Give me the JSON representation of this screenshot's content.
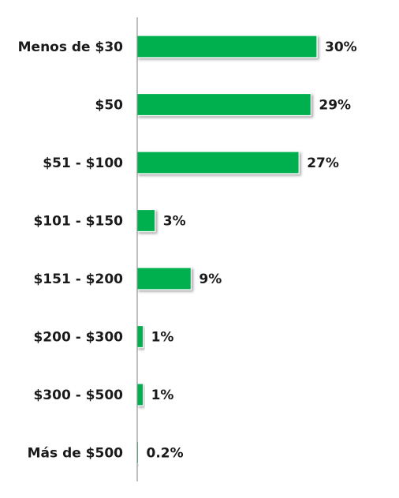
{
  "chart_data": {
    "type": "bar",
    "orientation": "horizontal",
    "categories": [
      "Menos de $30",
      "$50",
      "$51 - $100",
      "$101 - $150",
      "$151 - $200",
      "$200 - $300",
      "$300 - $500",
      "Más de $500"
    ],
    "values": [
      30,
      29,
      27,
      3,
      9,
      1,
      1,
      0.2
    ],
    "value_labels": [
      "30%",
      "29%",
      "27%",
      "3%",
      "9%",
      "1%",
      "1%",
      "0.2%"
    ],
    "unit": "%",
    "title": "",
    "xlabel": "",
    "ylabel": "",
    "xlim": [
      0,
      30
    ],
    "grid": false,
    "legend": "none",
    "colors": {
      "bar": "#00b050",
      "bar_outline": "#ffffff",
      "axis": "#808080",
      "text": "#1a1a1a"
    }
  }
}
